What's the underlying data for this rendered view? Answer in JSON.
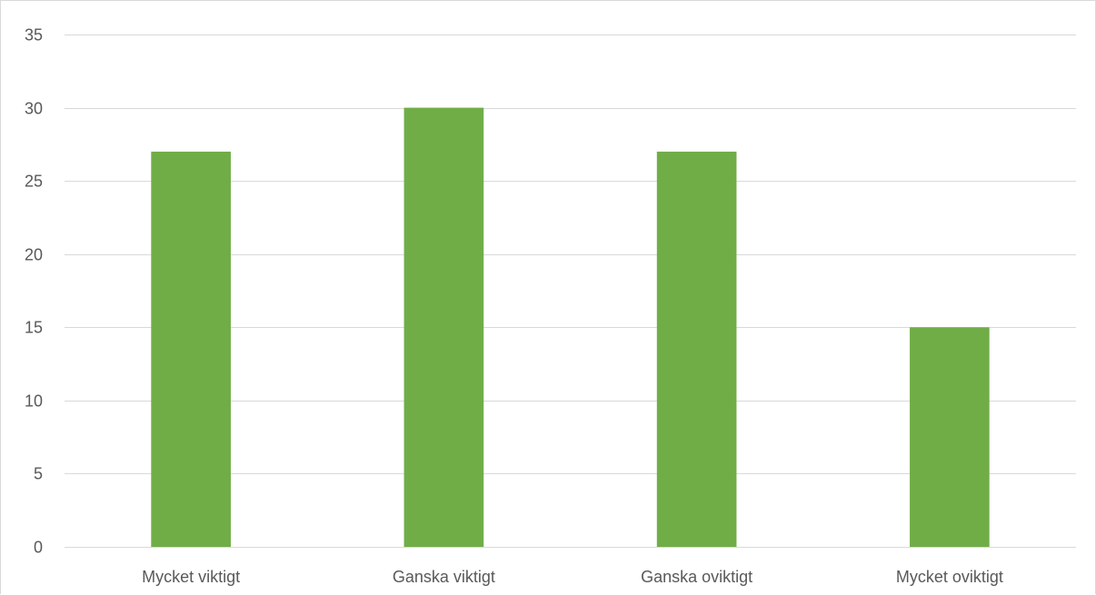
{
  "chart_data": {
    "type": "bar",
    "categories": [
      "Mycket viktigt",
      "Ganska viktigt",
      "Ganska oviktigt",
      "Mycket oviktigt"
    ],
    "values": [
      27,
      30,
      27,
      15
    ],
    "ylim": [
      0,
      35
    ],
    "yticks": [
      0,
      5,
      10,
      15,
      20,
      25,
      30,
      35
    ],
    "grid": true,
    "legend": "none",
    "bar_color": "#70ad47",
    "grid_color": "#d9d9d9",
    "text_color": "#595959"
  }
}
